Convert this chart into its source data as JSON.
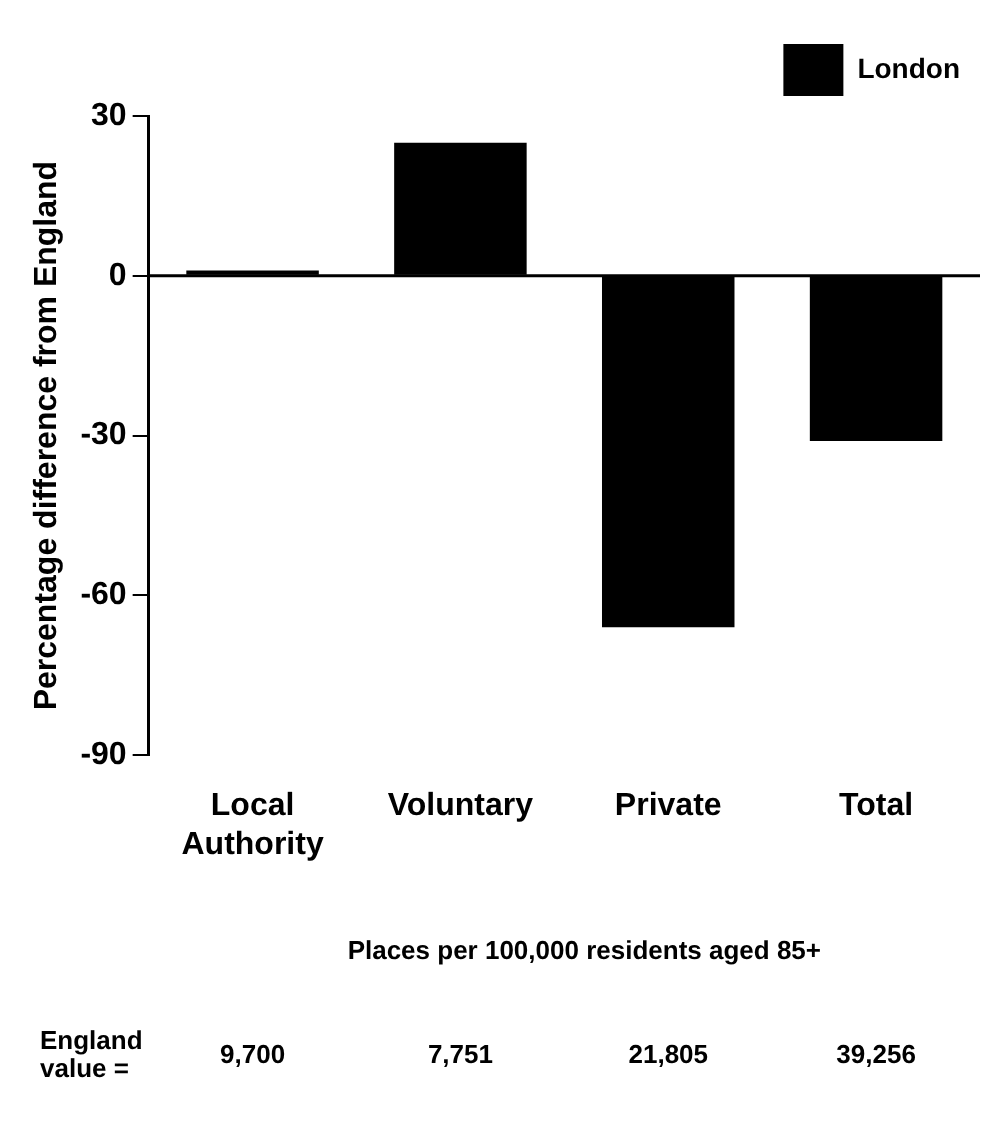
{
  "chart_data": {
    "type": "bar",
    "ylabel": "Percentage difference from England",
    "categories": [
      "Local Authority",
      "Voluntary",
      "Private",
      "Total"
    ],
    "series": [
      {
        "name": "London",
        "color": "#000000",
        "values": [
          1,
          25,
          -66,
          -31
        ]
      }
    ],
    "ylim": [
      -90,
      30
    ],
    "yticks": [
      -90,
      -60,
      -30,
      0,
      30
    ],
    "legend": "top right",
    "ref_lines": [
      {
        "axis": "y",
        "value": 0,
        "color": "#000000"
      }
    ],
    "annotations": [
      "Places per 100,000 residents aged 85+",
      "England value =",
      "9,700",
      "7,751",
      "21,805",
      "39,256"
    ]
  }
}
